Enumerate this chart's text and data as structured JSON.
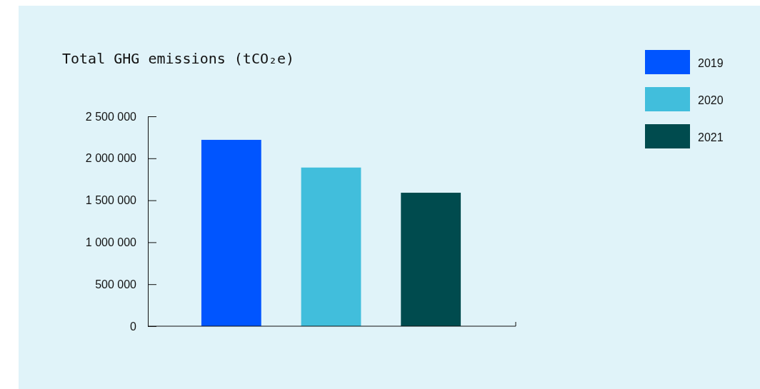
{
  "chart_data": {
    "type": "bar",
    "title": "Total GHG emissions (tCO₂e)",
    "categories": [
      null,
      null,
      null
    ],
    "series": [
      {
        "name": "2019",
        "color": "#0055ff",
        "values": [
          2220000,
          null,
          null
        ]
      },
      {
        "name": "2020",
        "color": "#41bedc",
        "values": [
          null,
          1890000,
          null
        ]
      },
      {
        "name": "2021",
        "color": "#004b4e",
        "values": [
          null,
          null,
          1590000
        ]
      }
    ],
    "ylim": [
      0,
      2500000
    ],
    "yticks": [
      {
        "value": 0,
        "label": "0"
      },
      {
        "value": 500000,
        "label": "500 000"
      },
      {
        "value": 1000000,
        "label": "1 000 000"
      },
      {
        "value": 1500000,
        "label": "1 500 000"
      },
      {
        "value": 2000000,
        "label": "2 000 000"
      },
      {
        "value": 2500000,
        "label": "2 500 000"
      }
    ],
    "grid": false,
    "legend": "top right"
  }
}
